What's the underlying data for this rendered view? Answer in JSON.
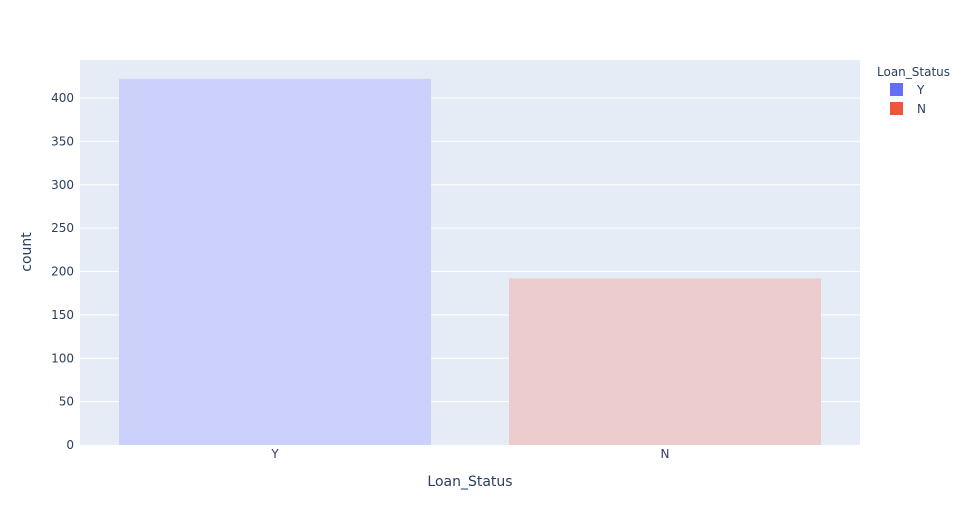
{
  "chart_data": {
    "type": "bar",
    "title": "",
    "xlabel": "Loan_Status",
    "ylabel": "count",
    "categories": [
      "Y",
      "N"
    ],
    "values": [
      422,
      192
    ],
    "ylim": [
      0,
      440
    ],
    "yticks": [
      0,
      50,
      100,
      150,
      200,
      250,
      300,
      350,
      400
    ],
    "grid": true,
    "legend": {
      "title": "Loan_Status",
      "placement": "top-right",
      "entries": [
        {
          "label": "Y",
          "color": "#636efa"
        },
        {
          "label": "N",
          "color": "#ef553b"
        }
      ]
    }
  },
  "colors": {
    "plot_background": "#e5ecf6",
    "gridline": "#ffffff",
    "bar_Y_fill": "#ccd1fc",
    "bar_N_fill": "#eccbcc",
    "text": "#2a3f5f"
  }
}
